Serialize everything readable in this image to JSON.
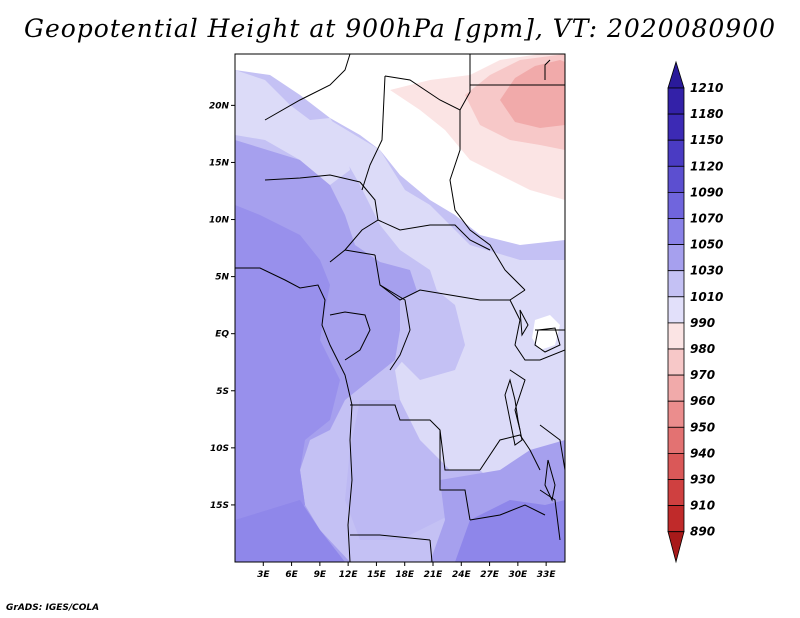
{
  "title": "Geopotential Height at 900hPa [gpm], VT: 2020080900",
  "credit": "GrADS: IGES/COLA",
  "map": {
    "lon_labels": [
      "3E",
      "6E",
      "9E",
      "12E",
      "15E",
      "18E",
      "21E",
      "24E",
      "27E",
      "30E",
      "33E"
    ],
    "lat_labels": [
      "20N",
      "15N",
      "10N",
      "5N",
      "EQ",
      "5S",
      "10S",
      "15S"
    ],
    "extent": {
      "lon_min": 0,
      "lon_max": 35,
      "lat_min": -20,
      "lat_max": 24.5
    }
  },
  "colorbar": {
    "levels": [
      "1210",
      "1180",
      "1150",
      "1120",
      "1090",
      "1070",
      "1050",
      "1030",
      "1010",
      "990",
      "980",
      "970",
      "960",
      "950",
      "940",
      "930",
      "910",
      "890"
    ],
    "colors": [
      "#2a1a9a",
      "#3321a8",
      "#3c2ab5",
      "#4a3bc3",
      "#5c4fd0",
      "#7065dd",
      "#8a82e8",
      "#a6a0ee",
      "#c4c1f4",
      "#e2e0fa",
      "#fbe4e4",
      "#f7c8c8",
      "#f1aaaa",
      "#eb8d8d",
      "#e37272",
      "#da5858",
      "#cf4040",
      "#c02a2a",
      "#a81a1a"
    ]
  },
  "field_colors": {
    "c_white": "#ffffff",
    "c_1010": "#dcdbf8",
    "c_1030": "#c4c1f4",
    "c_1050": "#a6a0ee",
    "c_1070": "#8e86ea",
    "c_990": "#fbe4e4",
    "c_980": "#f7c8c8",
    "c_970": "#f1aaaa"
  }
}
